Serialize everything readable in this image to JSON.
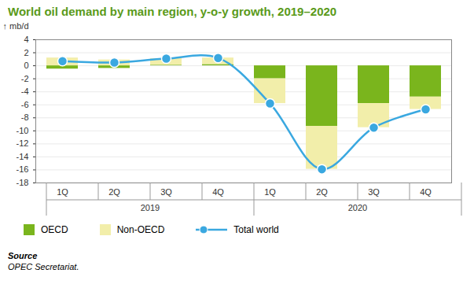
{
  "chart_data": {
    "type": "bar",
    "title": "World oil demand by main region, y-o-y growth, 2019–2020",
    "y_label": "mb/d",
    "categories": [
      "1Q",
      "2Q",
      "3Q",
      "4Q",
      "1Q",
      "2Q",
      "3Q",
      "4Q"
    ],
    "group_labels": [
      "2019",
      "2019",
      "2019",
      "2019",
      "2020",
      "2020",
      "2020",
      "2020"
    ],
    "series": [
      {
        "name": "OECD",
        "type": "bar",
        "color": "#7ab51d",
        "values": [
          -0.5,
          -0.4,
          0.1,
          0.2,
          -2.0,
          -9.3,
          -5.8,
          -4.8
        ]
      },
      {
        "name": "Non-OECD",
        "type": "bar",
        "color": "#f2eeaa",
        "values": [
          1.2,
          0.9,
          1.0,
          1.0,
          -3.8,
          -6.6,
          -3.7,
          -1.9
        ]
      },
      {
        "name": "Total world",
        "type": "line",
        "color": "#3aa8e0",
        "marker": "circle",
        "line_style": "smooth",
        "values": [
          0.7,
          0.5,
          1.1,
          1.2,
          -5.8,
          -15.9,
          -9.5,
          -6.7
        ]
      }
    ],
    "stacked": true,
    "ylim": [
      -18,
      4
    ],
    "yticks": [
      -18,
      -16,
      -14,
      -12,
      -10,
      -8,
      -6,
      -4,
      -2,
      0,
      2,
      4
    ],
    "grid": true,
    "legend": "bottom",
    "source_title": "Source",
    "source": "OPEC Secretariat."
  }
}
